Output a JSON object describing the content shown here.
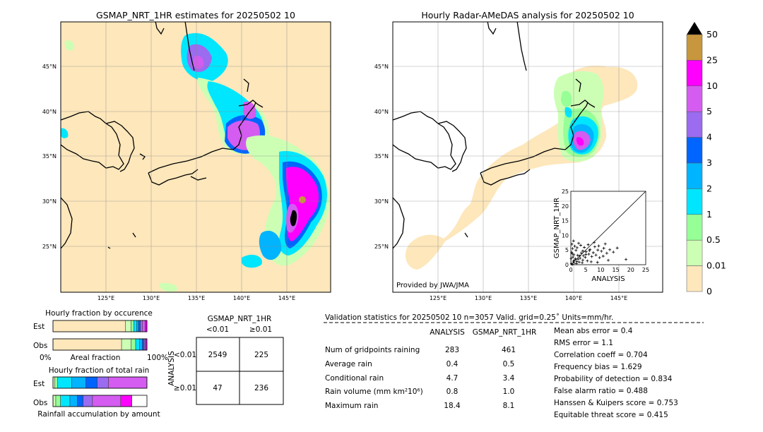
{
  "left_map": {
    "title": "GSMAP_NRT_1HR estimates for 20250502 10",
    "lat_labels": [
      "45°N",
      "40°N",
      "35°N",
      "30°N",
      "25°N"
    ],
    "lon_labels": [
      "125°E",
      "130°E",
      "135°E",
      "140°E",
      "145°E"
    ]
  },
  "right_map": {
    "title": "Hourly Radar-AMeDAS analysis for 20250502 10",
    "lat_labels": [
      "45°N",
      "40°N",
      "35°N",
      "30°N",
      "25°N"
    ],
    "lon_labels": [
      "125°E",
      "130°E",
      "135°E",
      "140°E",
      "145°E"
    ],
    "credit": "Provided by JWA/JMA"
  },
  "colorbar": {
    "labels": [
      "50",
      "25",
      "10",
      "5",
      "4",
      "3",
      "2",
      "1",
      "0.5",
      "0.01",
      "0"
    ],
    "colors": [
      "#c8963c",
      "#ff00ff",
      "#d45cf0",
      "#9b6bf0",
      "#0064ff",
      "#00b4ff",
      "#00e6ff",
      "#96ff96",
      "#ccffb4",
      "#fde7bb"
    ]
  },
  "chart_data": [
    {
      "type": "scatter",
      "xlabel": "ANALYSIS",
      "ylabel": "GSMAP_NRT_1HR",
      "xlim": [
        0,
        25
      ],
      "ylim": [
        0,
        25
      ],
      "x_ticks": [
        "0",
        "5",
        "10",
        "15",
        "20",
        "25"
      ],
      "y_ticks": [
        "0",
        "5",
        "10",
        "15",
        "20",
        "25"
      ],
      "points": [
        [
          0.2,
          0.3
        ],
        [
          0.5,
          0.1
        ],
        [
          0.8,
          1.2
        ],
        [
          1.1,
          0.6
        ],
        [
          1.5,
          2.0
        ],
        [
          2.0,
          1.1
        ],
        [
          2.3,
          3.2
        ],
        [
          2.8,
          0.9
        ],
        [
          3.1,
          2.2
        ],
        [
          3.5,
          4.0
        ],
        [
          4.0,
          1.6
        ],
        [
          4.2,
          3.1
        ],
        [
          4.8,
          2.5
        ],
        [
          5.1,
          4.4
        ],
        [
          5.5,
          1.3
        ],
        [
          6.0,
          3.6
        ],
        [
          6.4,
          5.2
        ],
        [
          7.0,
          2.8
        ],
        [
          7.5,
          4.1
        ],
        [
          8.0,
          6.1
        ],
        [
          8.4,
          3.3
        ],
        [
          9.0,
          5.0
        ],
        [
          9.6,
          2.4
        ],
        [
          10.2,
          4.6
        ],
        [
          11.0,
          5.6
        ],
        [
          12.0,
          3.9
        ],
        [
          13.0,
          5.1
        ],
        [
          14.2,
          4.3
        ],
        [
          15.5,
          5.7
        ],
        [
          18.4,
          1.8
        ],
        [
          0.3,
          4.2
        ],
        [
          0.6,
          5.5
        ],
        [
          1.0,
          3.4
        ],
        [
          1.3,
          6.3
        ],
        [
          0.4,
          7.0
        ],
        [
          2.1,
          5.8
        ],
        [
          0.9,
          8.1
        ],
        [
          3.3,
          6.6
        ],
        [
          1.7,
          4.9
        ],
        [
          2.6,
          7.3
        ],
        [
          0.1,
          2.1
        ],
        [
          0.7,
          2.6
        ],
        [
          1.9,
          0.4
        ],
        [
          3.8,
          0.7
        ],
        [
          4.5,
          5.9
        ],
        [
          5.8,
          6.8
        ],
        [
          6.8,
          1.0
        ],
        [
          7.8,
          7.6
        ],
        [
          8.9,
          0.8
        ],
        [
          10.8,
          2.9
        ],
        [
          12.5,
          1.5
        ],
        [
          3.0,
          3.0
        ],
        [
          4.0,
          4.7
        ],
        [
          2.4,
          1.9
        ],
        [
          1.2,
          1.5
        ],
        [
          0.5,
          3.7
        ],
        [
          6.2,
          4.8
        ],
        [
          5.0,
          3.5
        ],
        [
          9.3,
          6.4
        ],
        [
          11.5,
          7.1
        ]
      ]
    },
    {
      "type": "table",
      "title": "GSMAP_NRT_1HR",
      "col_labels": [
        "<0.01",
        "≥0.01"
      ],
      "row_axis_label": "ANALYSIS",
      "row_labels": [
        "<0.01",
        "≥0.01"
      ],
      "cells": [
        [
          2549,
          225
        ],
        [
          47,
          236
        ]
      ]
    },
    {
      "type": "bar",
      "title": "Hourly fraction by occurence",
      "rows": [
        "Est",
        "Obs"
      ],
      "xlabel_left": "0%",
      "xlabel_mid": "Areal fraction",
      "xlabel_right": "100%",
      "series": [
        {
          "row": "Est",
          "segments": [
            {
              "color": "#fde7bb",
              "value": 0.77
            },
            {
              "color": "#ccffb4",
              "value": 0.06
            },
            {
              "color": "#96ff96",
              "value": 0.03
            },
            {
              "color": "#00e6ff",
              "value": 0.03
            },
            {
              "color": "#00b4ff",
              "value": 0.02
            },
            {
              "color": "#0064ff",
              "value": 0.02
            },
            {
              "color": "#9b6bf0",
              "value": 0.02
            },
            {
              "color": "#d45cf0",
              "value": 0.03
            },
            {
              "color": "#ff00ff",
              "value": 0.02
            }
          ]
        },
        {
          "row": "Obs",
          "segments": [
            {
              "color": "#fde7bb",
              "value": 0.73
            },
            {
              "color": "#ccffb4",
              "value": 0.1
            },
            {
              "color": "#96ff96",
              "value": 0.05
            },
            {
              "color": "#00e6ff",
              "value": 0.04
            },
            {
              "color": "#00b4ff",
              "value": 0.03
            },
            {
              "color": "#0064ff",
              "value": 0.02
            },
            {
              "color": "#9b6bf0",
              "value": 0.01
            },
            {
              "color": "#d45cf0",
              "value": 0.01
            },
            {
              "color": "#ff00ff",
              "value": 0.01
            }
          ]
        }
      ]
    },
    {
      "type": "bar",
      "title": "Hourly fraction of total rain",
      "rows": [
        "Est",
        "Obs"
      ],
      "xlabel_mid": "Rainfall accumulation by amount",
      "series": [
        {
          "row": "Est",
          "segments": [
            {
              "color": "#ccffb4",
              "value": 0.02
            },
            {
              "color": "#96ff96",
              "value": 0.03
            },
            {
              "color": "#00e6ff",
              "value": 0.15
            },
            {
              "color": "#00b4ff",
              "value": 0.15
            },
            {
              "color": "#0064ff",
              "value": 0.12
            },
            {
              "color": "#9b6bf0",
              "value": 0.12
            },
            {
              "color": "#d45cf0",
              "value": 0.41
            }
          ]
        },
        {
          "row": "Obs",
          "segments": [
            {
              "color": "#ccffb4",
              "value": 0.03
            },
            {
              "color": "#96ff96",
              "value": 0.05
            },
            {
              "color": "#00e6ff",
              "value": 0.1
            },
            {
              "color": "#00b4ff",
              "value": 0.08
            },
            {
              "color": "#0064ff",
              "value": 0.06
            },
            {
              "color": "#9b6bf0",
              "value": 0.1
            },
            {
              "color": "#d45cf0",
              "value": 0.3
            },
            {
              "color": "#ff00ff",
              "value": 0.12
            }
          ]
        }
      ]
    }
  ],
  "validation": {
    "header": "Validation statistics for 20250502 10  n=3057 Valid. grid=0.25˚ Units=mm/hr.",
    "col_analysis": "ANALYSIS",
    "col_gsmap": "GSMAP_NRT_1HR",
    "rows": [
      {
        "label": "Num of gridpoints raining",
        "analysis": "283",
        "gsmap": "461"
      },
      {
        "label": "Average rain",
        "analysis": "0.4",
        "gsmap": "0.5"
      },
      {
        "label": "Conditional rain",
        "analysis": "4.7",
        "gsmap": "3.4"
      },
      {
        "label": "Rain volume (mm km²10⁶)",
        "analysis": "0.8",
        "gsmap": "1.0"
      },
      {
        "label": "Maximum rain",
        "analysis": "18.4",
        "gsmap": "8.1"
      }
    ],
    "scores": [
      "Mean abs error =    0.4",
      "RMS error =    1.1",
      "Correlation coeff =  0.704",
      "Frequency bias =  1.629",
      "Probability of detection =  0.834",
      "False alarm ratio =  0.488",
      "Hanssen & Kuipers score =  0.753",
      "Equitable threat score =  0.415"
    ]
  }
}
